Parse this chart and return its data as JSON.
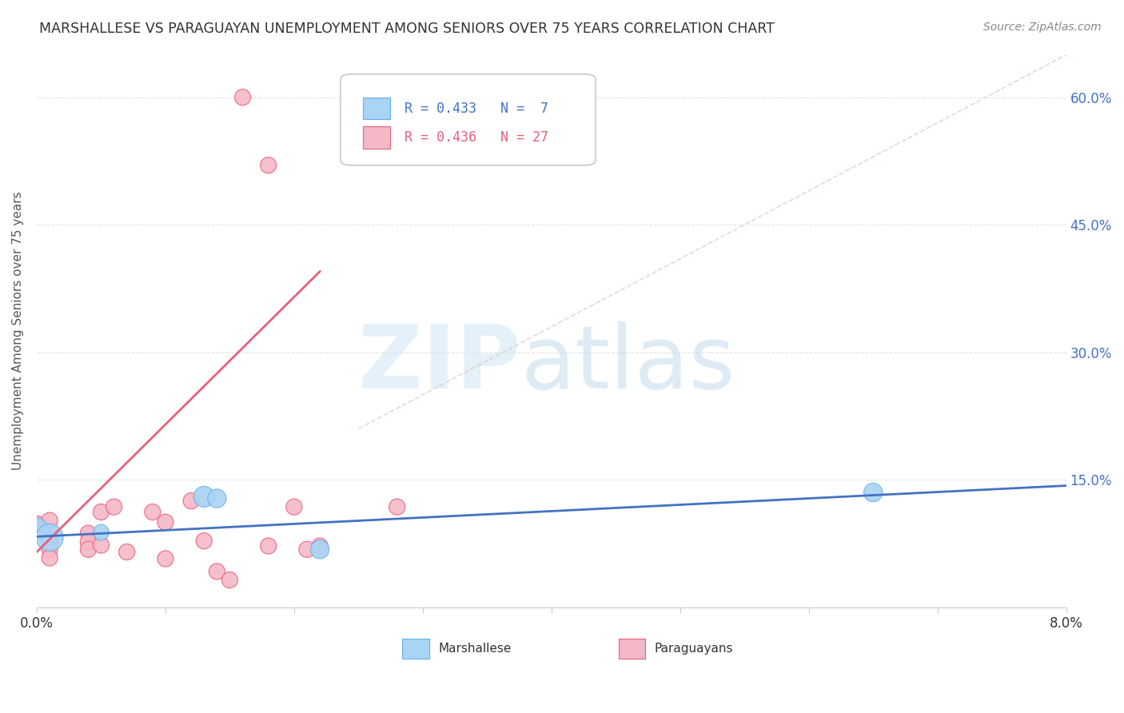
{
  "title": "MARSHALLESE VS PARAGUAYAN UNEMPLOYMENT AMONG SENIORS OVER 75 YEARS CORRELATION CHART",
  "source": "Source: ZipAtlas.com",
  "ylabel": "Unemployment Among Seniors over 75 years",
  "xlim": [
    0.0,
    0.08
  ],
  "ylim": [
    0.0,
    0.65
  ],
  "yticks": [
    0.0,
    0.15,
    0.3,
    0.45,
    0.6
  ],
  "ytick_labels": [
    "",
    "15.0%",
    "30.0%",
    "45.0%",
    "60.0%"
  ],
  "xticks": [
    0.0,
    0.01,
    0.02,
    0.03,
    0.04,
    0.05,
    0.06,
    0.07,
    0.08
  ],
  "background_color": "#ffffff",
  "watermark_zip": "ZIP",
  "watermark_atlas": "atlas",
  "marshallese": {
    "color": "#a8d4f5",
    "edge_color": "#6aaee8",
    "R": 0.433,
    "N": 7,
    "data": [
      [
        0.0,
        0.092
      ],
      [
        0.001,
        0.082
      ],
      [
        0.005,
        0.088
      ],
      [
        0.013,
        0.13
      ],
      [
        0.014,
        0.128
      ],
      [
        0.022,
        0.068
      ],
      [
        0.065,
        0.135
      ]
    ],
    "sizes": [
      400,
      600,
      200,
      350,
      280,
      280,
      280
    ]
  },
  "paraguayan": {
    "color": "#f5b8c8",
    "edge_color": "#e8607a",
    "R": 0.436,
    "N": 27,
    "data": [
      [
        0.0,
        0.097
      ],
      [
        0.001,
        0.082
      ],
      [
        0.001,
        0.077
      ],
      [
        0.001,
        0.068
      ],
      [
        0.001,
        0.058
      ],
      [
        0.001,
        0.102
      ],
      [
        0.004,
        0.087
      ],
      [
        0.004,
        0.077
      ],
      [
        0.004,
        0.068
      ],
      [
        0.005,
        0.073
      ],
      [
        0.005,
        0.112
      ],
      [
        0.006,
        0.118
      ],
      [
        0.007,
        0.065
      ],
      [
        0.009,
        0.112
      ],
      [
        0.01,
        0.1
      ],
      [
        0.01,
        0.057
      ],
      [
        0.012,
        0.125
      ],
      [
        0.013,
        0.078
      ],
      [
        0.014,
        0.042
      ],
      [
        0.015,
        0.032
      ],
      [
        0.018,
        0.072
      ],
      [
        0.02,
        0.118
      ],
      [
        0.021,
        0.068
      ],
      [
        0.022,
        0.072
      ],
      [
        0.016,
        0.6
      ],
      [
        0.018,
        0.52
      ],
      [
        0.028,
        0.118
      ]
    ],
    "sizes": [
      260,
      210,
      210,
      210,
      210,
      210,
      210,
      210,
      210,
      210,
      210,
      210,
      210,
      210,
      210,
      210,
      210,
      210,
      210,
      210,
      210,
      210,
      210,
      210,
      210,
      210,
      210
    ]
  },
  "marshallese_trend": {
    "x": [
      0.0,
      0.08
    ],
    "y": [
      0.083,
      0.143
    ],
    "color": "#4472c4",
    "linewidth": 2.0
  },
  "paraguayan_trend": {
    "x": [
      0.0,
      0.022
    ],
    "y": [
      0.065,
      0.395
    ],
    "color": "#e8607a",
    "linewidth": 2.0
  },
  "diagonal_line": {
    "color": "#ddbbbb",
    "linestyle": "--",
    "alpha": 0.6,
    "x": [
      0.025,
      0.08
    ],
    "y": [
      0.21,
      0.65
    ]
  },
  "legend_marshallese_color": "#a8d4f5",
  "legend_paraguayan_color": "#f5b8c8",
  "legend_marsh_edge": "#6aaee8",
  "legend_para_edge": "#e8607a",
  "grid_color": "#dddddd",
  "grid_linestyle": "--",
  "grid_alpha": 0.8
}
